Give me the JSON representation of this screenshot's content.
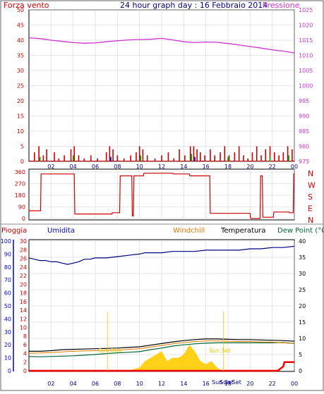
{
  "header": {
    "left_label": "Forza vento",
    "title": "24 hour graph day : 16 Febbraio 2014",
    "right_label": "Pressione"
  },
  "colors": {
    "wind": "#cc0000",
    "pressure": "#cc33cc",
    "title": "#000080",
    "dir": "#cc0000",
    "rain_axis": "#cc0000",
    "hum_axis": "#0000cc",
    "humidity": "#000080",
    "temperature": "#000000",
    "windchill": "#e07800",
    "dewpoint": "#006633",
    "rain": "#ff0000",
    "solar": "#ffcc00",
    "sun_label": "#e6c800",
    "gust_green": "#00aa00",
    "gust_blue": "#0000cc"
  },
  "time_ticks": [
    "02",
    "04",
    "06",
    "08",
    "10",
    "12",
    "14",
    "16",
    "18",
    "20",
    "22",
    "00"
  ],
  "wind_pressure_chart": {
    "type": "line",
    "left_axis_ticks": [
      "50",
      "45",
      "40",
      "35",
      "30",
      "25",
      "20",
      "15",
      "10",
      "5",
      "0"
    ],
    "right_axis_ticks": [
      "1025",
      "1020",
      "1015",
      "1010",
      "1005",
      "1000",
      "995",
      "990",
      "985",
      "980",
      "975"
    ],
    "ylim_wind": [
      0,
      50
    ],
    "ylim_pressure": [
      975,
      1025
    ],
    "pressure_series": {
      "name": "Pressione",
      "hours": [
        0,
        1,
        2,
        3,
        4,
        5,
        6,
        7,
        8,
        9,
        10,
        11,
        12,
        13,
        14,
        15,
        16,
        17,
        18,
        19,
        20,
        21,
        22,
        23,
        24
      ],
      "values": [
        1015.8,
        1015.5,
        1015.0,
        1014.6,
        1014.2,
        1014.0,
        1014.1,
        1014.5,
        1014.8,
        1015.1,
        1015.2,
        1015.3,
        1015.6,
        1015.1,
        1014.5,
        1014.2,
        1014.4,
        1014.3,
        1013.9,
        1013.4,
        1012.9,
        1012.4,
        1011.8,
        1011.4,
        1010.8
      ]
    },
    "wind_bars": [
      {
        "h": 0.5,
        "v": 3
      },
      {
        "h": 0.9,
        "v": 5
      },
      {
        "h": 1.3,
        "v": 2
      },
      {
        "h": 1.6,
        "v": 4
      },
      {
        "h": 2.3,
        "v": 3
      },
      {
        "h": 2.7,
        "v": 1
      },
      {
        "h": 3.2,
        "v": 2
      },
      {
        "h": 3.8,
        "v": 4
      },
      {
        "h": 4.1,
        "v": 5
      },
      {
        "h": 4.5,
        "v": 2
      },
      {
        "h": 5.0,
        "v": 1
      },
      {
        "h": 5.6,
        "v": 2
      },
      {
        "h": 6.2,
        "v": 1
      },
      {
        "h": 7.0,
        "v": 3
      },
      {
        "h": 7.3,
        "v": 5
      },
      {
        "h": 7.6,
        "v": 4
      },
      {
        "h": 8.0,
        "v": 2
      },
      {
        "h": 8.6,
        "v": 1
      },
      {
        "h": 9.2,
        "v": 2
      },
      {
        "h": 9.7,
        "v": 3
      },
      {
        "h": 10.0,
        "v": 5
      },
      {
        "h": 10.3,
        "v": 4
      },
      {
        "h": 10.7,
        "v": 2
      },
      {
        "h": 11.4,
        "v": 1
      },
      {
        "h": 12.0,
        "v": 2
      },
      {
        "h": 12.6,
        "v": 3
      },
      {
        "h": 13.1,
        "v": 1
      },
      {
        "h": 13.6,
        "v": 4
      },
      {
        "h": 14.1,
        "v": 2
      },
      {
        "h": 14.6,
        "v": 5
      },
      {
        "h": 14.9,
        "v": 5
      },
      {
        "h": 15.2,
        "v": 4
      },
      {
        "h": 15.5,
        "v": 3
      },
      {
        "h": 15.9,
        "v": 2
      },
      {
        "h": 16.4,
        "v": 4
      },
      {
        "h": 16.8,
        "v": 2
      },
      {
        "h": 17.3,
        "v": 3
      },
      {
        "h": 17.7,
        "v": 5
      },
      {
        "h": 18.1,
        "v": 2
      },
      {
        "h": 18.6,
        "v": 3
      },
      {
        "h": 19.0,
        "v": 5
      },
      {
        "h": 19.4,
        "v": 2
      },
      {
        "h": 19.8,
        "v": 1
      },
      {
        "h": 20.2,
        "v": 3
      },
      {
        "h": 20.6,
        "v": 5
      },
      {
        "h": 21.0,
        "v": 2
      },
      {
        "h": 21.4,
        "v": 4
      },
      {
        "h": 21.8,
        "v": 5
      },
      {
        "h": 22.2,
        "v": 3
      },
      {
        "h": 22.6,
        "v": 2
      },
      {
        "h": 23.0,
        "v": 3
      },
      {
        "h": 23.4,
        "v": 5
      },
      {
        "h": 23.8,
        "v": 4
      }
    ],
    "gust_marks": [
      {
        "h": 1.0,
        "v": 1.5,
        "c": "green"
      },
      {
        "h": 4.0,
        "v": 2,
        "c": "green"
      },
      {
        "h": 7.4,
        "v": 1.5,
        "c": "blue"
      },
      {
        "h": 10.1,
        "v": 2,
        "c": "green"
      },
      {
        "h": 14.7,
        "v": 2.5,
        "c": "green"
      },
      {
        "h": 15.0,
        "v": 1.5,
        "c": "blue"
      },
      {
        "h": 18.0,
        "v": 1.5,
        "c": "green"
      },
      {
        "h": 21.8,
        "v": 1.5,
        "c": "green"
      },
      {
        "h": 23.5,
        "v": 2,
        "c": "green"
      }
    ]
  },
  "direction_chart": {
    "type": "line",
    "left_axis_ticks": [
      "360",
      "270",
      "180",
      "90",
      "0"
    ],
    "ylim": [
      0,
      360
    ],
    "compass_labels": [
      "N",
      "W",
      "S",
      "E",
      "N"
    ],
    "hours": [
      0,
      0.02,
      1.05,
      1.1,
      4.1,
      4.15,
      7.5,
      7.55,
      8.2,
      8.25,
      9.3,
      9.35,
      9.45,
      9.5,
      10.35,
      10.4,
      13.0,
      13.05,
      14.5,
      14.55,
      16.2,
      16.25,
      16.35,
      16.4,
      20.0,
      20.05,
      20.9,
      20.95,
      21.1,
      21.15,
      22.1,
      22.15,
      23.5,
      23.55,
      23.9,
      23.95
    ],
    "values": [
      55,
      60,
      60,
      345,
      345,
      35,
      35,
      45,
      45,
      330,
      330,
      20,
      20,
      330,
      330,
      350,
      350,
      345,
      345,
      330,
      330,
      330,
      330,
      40,
      40,
      0,
      0,
      330,
      330,
      10,
      10,
      50,
      50,
      45,
      45,
      350
    ]
  },
  "temp_chart": {
    "type": "line",
    "header_labels": {
      "rain": "Pioggia",
      "humidity": "Umidita",
      "windchill": "Windchill",
      "temperature": "Temperatura",
      "dewpoint": "Dew Point (°C"
    },
    "humidity_axis_ticks": [
      "100",
      "90",
      "80",
      "70",
      "60",
      "50",
      "40",
      "30",
      "20",
      "10",
      "0"
    ],
    "rain_axis_ticks": [
      "30",
      "28",
      "26",
      "24",
      "22",
      "20",
      "18",
      "16",
      "14",
      "12",
      "10",
      "8",
      "6",
      "4",
      "2",
      "0"
    ],
    "temp_axis_ticks": [
      "40",
      "35",
      "30",
      "25",
      "20",
      "15",
      "10",
      "5",
      "0"
    ],
    "ylim_humidity": [
      0,
      100
    ],
    "ylim_rain": [
      0,
      30
    ],
    "ylim_temp": [
      0,
      40
    ],
    "humidity_series": {
      "name": "Umidita",
      "hours": [
        0,
        0.5,
        1,
        1.5,
        2,
        2.5,
        3,
        3.5,
        4,
        4.5,
        5,
        5.5,
        6,
        6.5,
        7,
        8,
        9,
        10,
        10.5,
        11,
        12,
        13,
        14,
        15,
        16,
        17,
        18,
        19,
        20,
        21,
        22,
        23,
        24
      ],
      "values": [
        87,
        86,
        85,
        85,
        84,
        84,
        83,
        82,
        83,
        84,
        86,
        86,
        87,
        87,
        87,
        88,
        89,
        90,
        91,
        91,
        91,
        92,
        92,
        92,
        93,
        93,
        93,
        93,
        94,
        94,
        95,
        95,
        96
      ]
    },
    "temperature_series": {
      "name": "Temperatura",
      "hours": [
        0,
        1,
        2,
        3,
        4,
        5,
        6,
        7,
        8,
        9,
        10,
        11,
        12,
        13,
        14,
        15,
        16,
        17,
        18,
        19,
        20,
        21,
        22,
        23,
        24
      ],
      "values": [
        6.0,
        6.0,
        6.2,
        6.5,
        6.6,
        6.7,
        6.8,
        6.9,
        7.0,
        7.2,
        7.4,
        7.9,
        8.4,
        8.9,
        9.3,
        9.6,
        9.8,
        9.8,
        9.7,
        9.6,
        9.6,
        9.5,
        9.4,
        9.3,
        9.1
      ]
    },
    "windchill_series": {
      "name": "Windchill",
      "hours": [
        0,
        1,
        2,
        3,
        4,
        5,
        6,
        7,
        8,
        9,
        10,
        11,
        12,
        13,
        14,
        15,
        16,
        17,
        18,
        19,
        20,
        21,
        22,
        23,
        24
      ],
      "values": [
        5.4,
        5.5,
        5.6,
        5.8,
        6.0,
        6.1,
        6.2,
        6.3,
        6.4,
        6.6,
        6.8,
        7.3,
        7.8,
        8.3,
        8.7,
        9.0,
        9.2,
        9.2,
        9.1,
        9.0,
        9.0,
        8.9,
        8.8,
        8.6,
        8.4
      ]
    },
    "dewpoint_series": {
      "name": "Dew Point",
      "hours": [
        0,
        1,
        2,
        3,
        4,
        5,
        6,
        7,
        8,
        9,
        10,
        11,
        12,
        13,
        14,
        15,
        16,
        17,
        18,
        19,
        20,
        21,
        22,
        23,
        24
      ],
      "values": [
        4.4,
        4.3,
        4.4,
        4.5,
        4.6,
        4.8,
        5.0,
        5.3,
        5.5,
        5.7,
        5.9,
        6.5,
        7.0,
        7.6,
        8.0,
        8.3,
        8.5,
        8.6,
        8.6,
        8.6,
        8.6,
        8.6,
        8.6,
        8.7,
        8.4
      ]
    },
    "solar_series": {
      "name": "solar",
      "hours": [
        7,
        8,
        9,
        10,
        10.5,
        11,
        11.5,
        12,
        12.5,
        13,
        13.5,
        14,
        14.5,
        15,
        15.5,
        16,
        16.5,
        17,
        17.5,
        18
      ],
      "values": [
        0,
        0,
        0,
        1,
        3,
        4,
        5,
        6,
        3,
        4,
        4,
        5,
        8,
        6,
        3,
        2,
        3,
        1,
        0,
        0
      ]
    },
    "rain_series": {
      "name": "Pioggia",
      "hours": [
        0,
        22.5,
        23.0,
        23.1,
        24
      ],
      "values": [
        0,
        0,
        1,
        2,
        2
      ]
    },
    "sun_labels": [
      "Sun Rise",
      "Sun Set",
      "Sun Set",
      "Sun Set"
    ]
  }
}
